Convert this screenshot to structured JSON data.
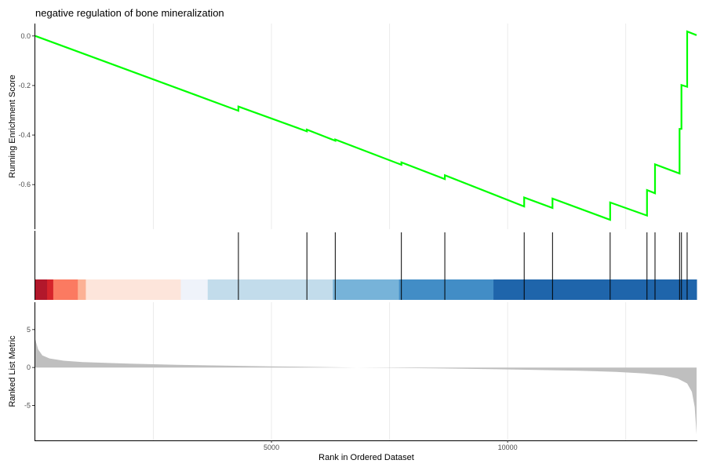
{
  "chart_data": {
    "type": "line",
    "title": "negative regulation of bone mineralization",
    "xlabel": "Rank in Ordered Dataset",
    "xlim": [
      0,
      14000
    ],
    "x_ticks": [
      {
        "value": 5000,
        "label": "5000"
      },
      {
        "value": 10000,
        "label": "10000"
      }
    ],
    "es_panel": {
      "ylabel": "Running Enrichment Score",
      "ylim": [
        -0.78,
        0.05
      ],
      "y_ticks": [
        {
          "value": 0.0,
          "label": "0.0"
        },
        {
          "value": -0.2,
          "label": "-0.2"
        },
        {
          "value": -0.4,
          "label": "-0.4"
        },
        {
          "value": -0.6,
          "label": "-0.6"
        }
      ],
      "line_color": "#00ff00",
      "grid": true
    },
    "hits": [
      4300,
      5750,
      6350,
      7750,
      8670,
      10350,
      10950,
      12170,
      12950,
      13120,
      13640,
      13680,
      13800
    ],
    "running_es": [
      {
        "x": 0,
        "y": 0.0
      },
      {
        "x": 4300,
        "y": -0.302
      },
      {
        "x": 4300,
        "y": -0.285
      },
      {
        "x": 5750,
        "y": -0.385
      },
      {
        "x": 5750,
        "y": -0.378
      },
      {
        "x": 6350,
        "y": -0.423
      },
      {
        "x": 6350,
        "y": -0.418
      },
      {
        "x": 7750,
        "y": -0.52
      },
      {
        "x": 7750,
        "y": -0.51
      },
      {
        "x": 8670,
        "y": -0.578
      },
      {
        "x": 8670,
        "y": -0.562
      },
      {
        "x": 10350,
        "y": -0.688
      },
      {
        "x": 10350,
        "y": -0.652
      },
      {
        "x": 10950,
        "y": -0.694
      },
      {
        "x": 10950,
        "y": -0.656
      },
      {
        "x": 12170,
        "y": -0.742
      },
      {
        "x": 12170,
        "y": -0.672
      },
      {
        "x": 12950,
        "y": -0.725
      },
      {
        "x": 12950,
        "y": -0.622
      },
      {
        "x": 13120,
        "y": -0.635
      },
      {
        "x": 13120,
        "y": -0.518
      },
      {
        "x": 13640,
        "y": -0.555
      },
      {
        "x": 13640,
        "y": -0.375
      },
      {
        "x": 13680,
        "y": -0.375
      },
      {
        "x": 13680,
        "y": -0.198
      },
      {
        "x": 13800,
        "y": -0.205
      },
      {
        "x": 13800,
        "y": 0.018
      },
      {
        "x": 14000,
        "y": 0.003
      }
    ],
    "color_bar": [
      {
        "from": 0,
        "to": 250,
        "color": "#b2182b"
      },
      {
        "from": 250,
        "to": 380,
        "color": "#d6242b"
      },
      {
        "from": 380,
        "to": 900,
        "color": "#fb7a61"
      },
      {
        "from": 900,
        "to": 1070,
        "color": "#fcb195"
      },
      {
        "from": 1070,
        "to": 3080,
        "color": "#fde5db"
      },
      {
        "from": 3080,
        "to": 3650,
        "color": "#eff3fa"
      },
      {
        "from": 3650,
        "to": 6300,
        "color": "#c2dceb"
      },
      {
        "from": 6300,
        "to": 7700,
        "color": "#77b3d9"
      },
      {
        "from": 7700,
        "to": 9700,
        "color": "#428dc6"
      },
      {
        "from": 9700,
        "to": 14000,
        "color": "#1f65ab"
      }
    ],
    "rank_panel": {
      "ylabel": "Ranked List Metric",
      "ylim": [
        -9.6,
        8.6
      ],
      "y_ticks": [
        {
          "value": 5,
          "label": "5"
        },
        {
          "value": 0,
          "label": "0"
        },
        {
          "value": -5,
          "label": "-5"
        }
      ],
      "fill_color": "#bfbfbf",
      "metric": [
        {
          "x": 0,
          "y": 3.7
        },
        {
          "x": 60,
          "y": 2.4
        },
        {
          "x": 150,
          "y": 1.6
        },
        {
          "x": 300,
          "y": 1.2
        },
        {
          "x": 600,
          "y": 0.9
        },
        {
          "x": 1000,
          "y": 0.72
        },
        {
          "x": 2000,
          "y": 0.5
        },
        {
          "x": 3000,
          "y": 0.35
        },
        {
          "x": 4000,
          "y": 0.25
        },
        {
          "x": 5000,
          "y": 0.15
        },
        {
          "x": 6000,
          "y": 0.07
        },
        {
          "x": 6800,
          "y": 0.0
        },
        {
          "x": 7500,
          "y": -0.05
        },
        {
          "x": 8500,
          "y": -0.12
        },
        {
          "x": 9500,
          "y": -0.2
        },
        {
          "x": 10500,
          "y": -0.3
        },
        {
          "x": 11500,
          "y": -0.42
        },
        {
          "x": 12300,
          "y": -0.58
        },
        {
          "x": 12900,
          "y": -0.78
        },
        {
          "x": 13300,
          "y": -1.05
        },
        {
          "x": 13600,
          "y": -1.45
        },
        {
          "x": 13800,
          "y": -2.1
        },
        {
          "x": 13900,
          "y": -3.2
        },
        {
          "x": 13960,
          "y": -5.2
        },
        {
          "x": 14000,
          "y": -8.8
        }
      ]
    }
  }
}
